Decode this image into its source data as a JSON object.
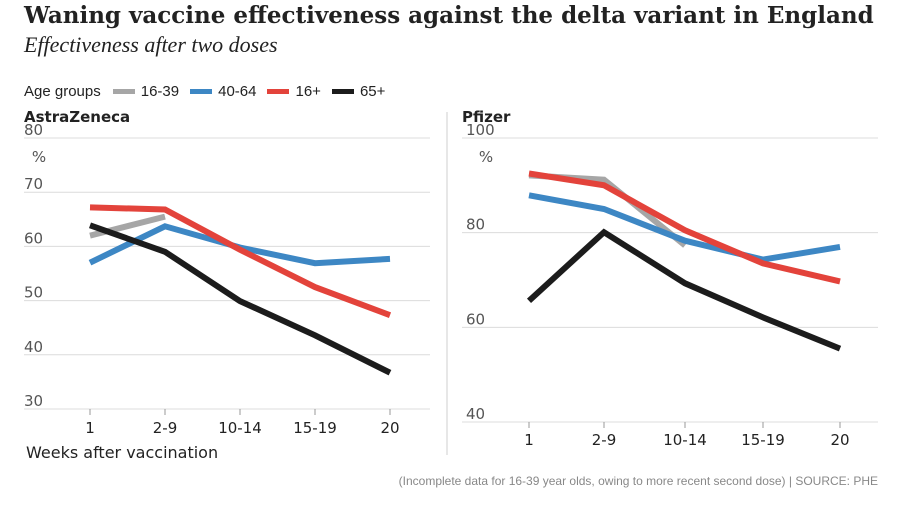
{
  "title": "Waning vaccine effectiveness against the delta variant in England",
  "subtitle": "Effectiveness after two doses",
  "legend": {
    "title": "Age groups",
    "items": [
      {
        "label": "16-39",
        "color": "#a6a6a6"
      },
      {
        "label": "40-64",
        "color": "#3d87c4"
      },
      {
        "label": "16+",
        "color": "#e3433b"
      },
      {
        "label": "65+",
        "color": "#1c1c1c"
      }
    ]
  },
  "x_axis_title": "Weeks after vaccination",
  "percent_sign": "%",
  "footnote": "(Incomplete data for 16-39 year olds, owing to more recent second dose) | SOURCE: PHE",
  "chart_data": [
    {
      "type": "line",
      "title": "AstraZeneca",
      "xlabel": "Weeks after vaccination",
      "ylabel": "%",
      "categories": [
        "1",
        "2-9",
        "10-14",
        "15-19",
        "20"
      ],
      "ylim": [
        30,
        80
      ],
      "yticks": [
        30,
        40,
        50,
        60,
        70,
        80
      ],
      "grid": true,
      "series": [
        {
          "name": "16-39",
          "color": "#a6a6a6",
          "values": [
            62.0,
            65.5,
            null,
            null,
            null
          ]
        },
        {
          "name": "40-64",
          "color": "#3d87c4",
          "values": [
            57.0,
            63.7,
            59.8,
            56.9,
            57.7
          ]
        },
        {
          "name": "16+",
          "color": "#e3433b",
          "values": [
            67.2,
            66.8,
            59.4,
            52.5,
            47.3
          ]
        },
        {
          "name": "65+",
          "color": "#1c1c1c",
          "values": [
            63.9,
            59.0,
            49.9,
            43.6,
            36.7
          ]
        }
      ]
    },
    {
      "type": "line",
      "title": "Pfizer",
      "xlabel": "Weeks after vaccination",
      "ylabel": "%",
      "categories": [
        "1",
        "2-9",
        "10-14",
        "15-19",
        "20"
      ],
      "ylim": [
        40,
        100
      ],
      "yticks": [
        40,
        60,
        80,
        100
      ],
      "grid": true,
      "series": [
        {
          "name": "16-39",
          "color": "#a6a6a6",
          "values": [
            92.1,
            91.2,
            77.3,
            null,
            null
          ]
        },
        {
          "name": "40-64",
          "color": "#3d87c4",
          "values": [
            87.9,
            85.0,
            78.3,
            74.3,
            77.0
          ]
        },
        {
          "name": "16+",
          "color": "#e3433b",
          "values": [
            92.5,
            90.0,
            80.5,
            73.5,
            69.7
          ]
        },
        {
          "name": "65+",
          "color": "#1c1c1c",
          "values": [
            65.6,
            80.1,
            69.3,
            62.1,
            55.5
          ]
        }
      ]
    }
  ]
}
